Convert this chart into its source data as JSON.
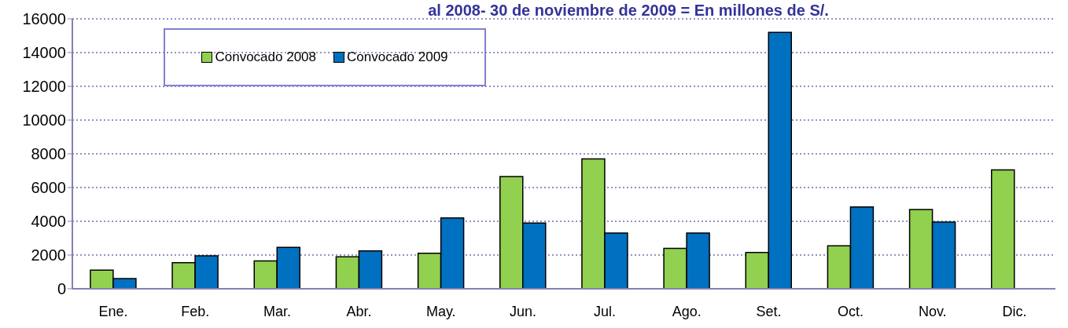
{
  "chart_data": {
    "type": "bar",
    "title": "al 2008- 30 de noviembre de 2009  = En millones de S/.",
    "categories": [
      "Ene.",
      "Feb.",
      "Mar.",
      "Abr.",
      "May.",
      "Jun.",
      "Jul.",
      "Ago.",
      "Set.",
      "Oct.",
      "Nov.",
      "Dic."
    ],
    "series": [
      {
        "name": "Convocado 2008",
        "color": "#92d050",
        "values": [
          1100,
          1550,
          1650,
          1900,
          2100,
          6650,
          7700,
          2400,
          2150,
          2550,
          4700,
          7050
        ]
      },
      {
        "name": "Convocado 2009",
        "color": "#0070c0",
        "values": [
          600,
          1950,
          2450,
          2250,
          4200,
          3900,
          3300,
          3300,
          15200,
          4850,
          3950,
          null
        ]
      }
    ],
    "ylim": [
      0,
      16000
    ],
    "yticks": [
      0,
      2000,
      4000,
      6000,
      8000,
      10000,
      12000,
      14000,
      16000
    ],
    "grid": "y",
    "legend": "top left"
  }
}
